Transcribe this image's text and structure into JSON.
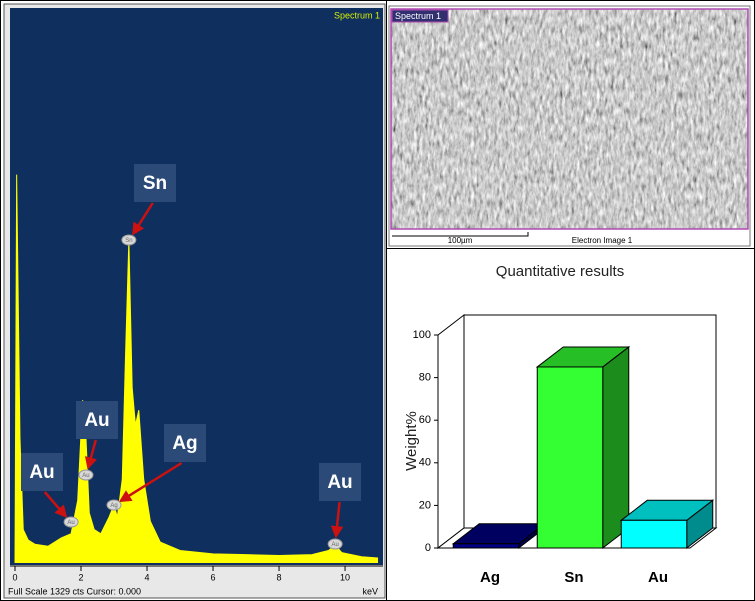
{
  "chart_data": [
    {
      "type": "area",
      "title": "Spectrum 1",
      "xlabel": "keV",
      "footer": "Full Scale 1329 cts Cursor: 0.000",
      "x": [
        0,
        0.05,
        0.15,
        0.25,
        0.4,
        0.6,
        1.0,
        1.4,
        1.7,
        1.9,
        2.05,
        2.15,
        2.25,
        2.4,
        2.6,
        2.85,
        3.0,
        3.1,
        3.25,
        3.35,
        3.45,
        3.55,
        3.65,
        3.75,
        3.9,
        4.1,
        4.4,
        5.0,
        6.0,
        7.0,
        8.0,
        9.0,
        9.5,
        9.7,
        9.9,
        10.5,
        11
      ],
      "values": [
        0,
        930,
        300,
        80,
        55,
        45,
        40,
        60,
        70,
        150,
        390,
        300,
        120,
        80,
        70,
        110,
        139,
        110,
        200,
        500,
        773,
        420,
        330,
        366,
        200,
        100,
        50,
        30,
        22,
        20,
        18,
        20,
        30,
        43,
        25,
        15,
        12
      ],
      "color": "#ffff00",
      "xlim": [
        0,
        11.15
      ],
      "xticks": [
        0,
        2,
        4,
        6,
        8,
        10
      ],
      "ylim": [
        0,
        1329
      ],
      "annotations": [
        {
          "text": "Sn",
          "x": 3.45
        },
        {
          "text": "Au",
          "x": 2.15
        },
        {
          "text": "Au",
          "x": 1.7
        },
        {
          "text": "Ag",
          "x": 3.0
        },
        {
          "text": "Au",
          "x": 9.7
        }
      ]
    },
    {
      "type": "bar3d",
      "title": "Quantitative results",
      "ylabel": "Weight%",
      "categories": [
        "Ag",
        "Sn",
        "Au"
      ],
      "values": [
        2,
        85,
        13
      ],
      "colors": [
        "#000080",
        "#33ff33",
        "#00ffff"
      ],
      "ylim": [
        0,
        100
      ],
      "yticks": [
        0,
        20,
        40,
        60,
        80,
        100
      ]
    }
  ],
  "image_panel": {
    "tag": "Spectrum 1",
    "scale_bar": "100µm",
    "caption": "Electron Image 1"
  }
}
